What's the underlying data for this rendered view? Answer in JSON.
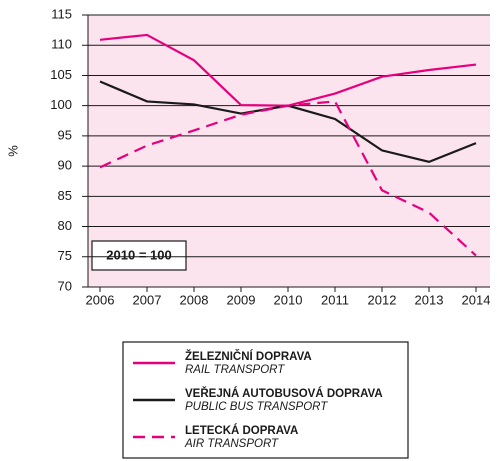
{
  "chart_data": {
    "type": "line",
    "y_label": "%",
    "annotation": "2010 = 100",
    "categories": [
      "2006",
      "2007",
      "2008",
      "2009",
      "2010",
      "2011",
      "2012",
      "2013",
      "2014"
    ],
    "ylim": [
      70,
      115
    ],
    "yticks": [
      70,
      75,
      80,
      85,
      90,
      95,
      100,
      105,
      110,
      115
    ],
    "grid": true,
    "series": [
      {
        "name": "ŽELEZNIČNÍ DOPRAVA",
        "name_en": "RAIL TRANSPORT",
        "color": "#e6007e",
        "dash": false,
        "values": [
          110.9,
          111.7,
          107.5,
          100.1,
          100,
          102,
          104.8,
          105.9,
          106.8
        ]
      },
      {
        "name": "VEŘEJNÁ AUTOBUSOVÁ DOPRAVA",
        "name_en": "PUBLIC BUS TRANSPORT",
        "color": "#1a1a1a",
        "dash": false,
        "values": [
          104,
          100.7,
          100.2,
          98.7,
          100,
          97.8,
          92.6,
          90.7,
          93.8
        ]
      },
      {
        "name": "LETECKÁ DOPRAVA",
        "name_en": "AIR TRANSPORT",
        "color": "#e6007e",
        "dash": true,
        "values": [
          89.8,
          93.4,
          95.9,
          98.5,
          100,
          100.7,
          86,
          82.3,
          75.2
        ]
      }
    ]
  }
}
